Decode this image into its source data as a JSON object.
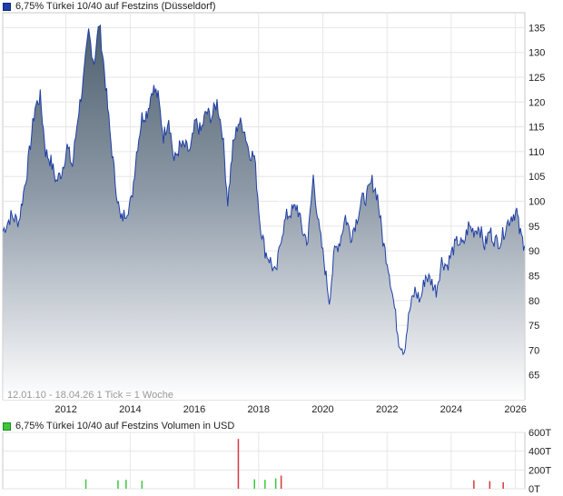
{
  "main_legend": {
    "label": "6,75% Türkei 10/40 auf Festzins (Düsseldorf)",
    "color": "#1f3fa6"
  },
  "volume_legend": {
    "label": "6,75% Türkei 10/40 auf Festzins Volumen in USD",
    "color": "#3cc83c"
  },
  "info_text": "12.01.10 - 18.04.26   1 Tick = 1 Woche",
  "chart_data": [
    {
      "type": "area",
      "x_ticks": [
        "2012",
        "2014",
        "2016",
        "2018",
        "2020",
        "2022",
        "2024",
        "2026"
      ],
      "y_ticks": [
        135,
        130,
        125,
        120,
        115,
        110,
        105,
        100,
        95,
        90,
        85,
        80,
        75,
        70,
        65
      ],
      "ylim": [
        60,
        138
      ],
      "xlim": [
        "2010-01-12",
        "2026-04-18"
      ],
      "line_color": "#1f3fa6",
      "grid": true,
      "series": [
        {
          "x": [
            "2010-01",
            "2010-04",
            "2010-07",
            "2010-10",
            "2011-01",
            "2011-03",
            "2011-05",
            "2011-07",
            "2011-09",
            "2011-11",
            "2012-01",
            "2012-03",
            "2012-05",
            "2012-07",
            "2012-09",
            "2012-11",
            "2013-01",
            "2013-03",
            "2013-05",
            "2013-07",
            "2013-09",
            "2013-11",
            "2014-01",
            "2014-03",
            "2014-05",
            "2014-07",
            "2014-09",
            "2014-11",
            "2015-01",
            "2015-03",
            "2015-05",
            "2015-07",
            "2015-09",
            "2015-11",
            "2016-01",
            "2016-03",
            "2016-05",
            "2016-07",
            "2016-09",
            "2016-11",
            "2017-01",
            "2017-03",
            "2017-05",
            "2017-07",
            "2017-09",
            "2017-11",
            "2018-01",
            "2018-03",
            "2018-05",
            "2018-07",
            "2018-09",
            "2018-11",
            "2019-01",
            "2019-03",
            "2019-05",
            "2019-07",
            "2019-09",
            "2019-11",
            "2020-01",
            "2020-03",
            "2020-05",
            "2020-07",
            "2020-09",
            "2020-11",
            "2021-01",
            "2021-03",
            "2021-05",
            "2021-07",
            "2021-09",
            "2021-11",
            "2022-01",
            "2022-03",
            "2022-05",
            "2022-07",
            "2022-09",
            "2022-11",
            "2023-01",
            "2023-03",
            "2023-05",
            "2023-07",
            "2023-09",
            "2023-11",
            "2024-01",
            "2024-03",
            "2024-05",
            "2024-07",
            "2024-09",
            "2024-11",
            "2025-01",
            "2025-03",
            "2025-05",
            "2025-07",
            "2025-09",
            "2025-11",
            "2026-01",
            "2026-02",
            "2026-04"
          ],
          "values": [
            94,
            97,
            96,
            106,
            119,
            121,
            110,
            108,
            104,
            106,
            111,
            107,
            117,
            124,
            134,
            128,
            136,
            126,
            114,
            104,
            96,
            98,
            100,
            110,
            117,
            118,
            123,
            121,
            113,
            117,
            108,
            111,
            111,
            110,
            116,
            114,
            118,
            117,
            120,
            114,
            100,
            111,
            116,
            115,
            110,
            109,
            96,
            90,
            88,
            85,
            93,
            97,
            98,
            99,
            94,
            92,
            105,
            95,
            88,
            80,
            90,
            92,
            97,
            93,
            96,
            100,
            101,
            104,
            101,
            92,
            87,
            80,
            72,
            70,
            78,
            82,
            80,
            85,
            84,
            82,
            88,
            87,
            90,
            92,
            91,
            95,
            94,
            95,
            91,
            94,
            92,
            92,
            95,
            97,
            98,
            94,
            91
          ]
        }
      ]
    },
    {
      "type": "bar",
      "title": "6,75% Türkei 10/40 auf Festzins Volumen in USD",
      "y_ticks": [
        "600T",
        "400T",
        "200T",
        "0T"
      ],
      "ylim": [
        0,
        600
      ],
      "bars": [
        {
          "x": "2012-08",
          "value": 100,
          "color": "#3cc83c"
        },
        {
          "x": "2013-08",
          "value": 90,
          "color": "#3cc83c"
        },
        {
          "x": "2013-11",
          "value": 95,
          "color": "#3cc83c"
        },
        {
          "x": "2014-05",
          "value": 85,
          "color": "#3cc83c"
        },
        {
          "x": "2017-05",
          "value": 530,
          "color": "#d23c3c"
        },
        {
          "x": "2017-11",
          "value": 100,
          "color": "#3cc83c"
        },
        {
          "x": "2018-03",
          "value": 95,
          "color": "#3cc83c"
        },
        {
          "x": "2018-07",
          "value": 110,
          "color": "#3cc83c"
        },
        {
          "x": "2018-09",
          "value": 140,
          "color": "#d23c3c"
        },
        {
          "x": "2024-09",
          "value": 90,
          "color": "#d23c3c"
        },
        {
          "x": "2025-03",
          "value": 80,
          "color": "#d23c3c"
        },
        {
          "x": "2025-08",
          "value": 70,
          "color": "#d23c3c"
        }
      ]
    }
  ]
}
